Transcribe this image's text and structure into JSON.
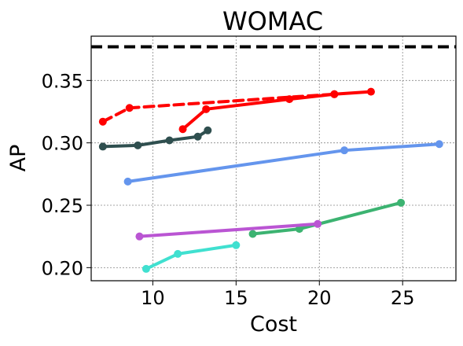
{
  "chart_data": {
    "type": "line",
    "title": "WOMAC",
    "xlabel": "Cost",
    "ylabel": "AP",
    "xlim": [
      6.3,
      28.2
    ],
    "ylim": [
      0.1895,
      0.3855
    ],
    "xticks": [
      10,
      15,
      20,
      25
    ],
    "xtick_labels": [
      "10",
      "15",
      "20",
      "25"
    ],
    "yticks": [
      0.2,
      0.25,
      0.3,
      0.35
    ],
    "ytick_labels": [
      "0.20",
      "0.25",
      "0.30",
      "0.35"
    ],
    "grid": true,
    "reference_line": {
      "y": 0.377,
      "color": "#000000",
      "style": "dashed"
    },
    "series": [
      {
        "color": "#ff0000",
        "style": "dashed",
        "points": [
          [
            7.0,
            0.317
          ],
          [
            8.6,
            0.328
          ],
          [
            20.9,
            0.339
          ]
        ]
      },
      {
        "color": "#ff0000",
        "style": "solid",
        "points": [
          [
            11.8,
            0.311
          ],
          [
            13.2,
            0.327
          ],
          [
            18.2,
            0.335
          ],
          [
            20.9,
            0.339
          ],
          [
            23.1,
            0.341
          ]
        ]
      },
      {
        "color": "#2f4f4f",
        "style": "solid",
        "points": [
          [
            7.0,
            0.297
          ],
          [
            9.1,
            0.298
          ],
          [
            11.0,
            0.302
          ],
          [
            12.7,
            0.305
          ],
          [
            13.3,
            0.31
          ]
        ]
      },
      {
        "color": "#6495ed",
        "style": "solid",
        "points": [
          [
            8.5,
            0.269
          ],
          [
            21.5,
            0.294
          ],
          [
            27.2,
            0.299
          ]
        ]
      },
      {
        "color": "#3cb371",
        "style": "solid",
        "points": [
          [
            16.0,
            0.227
          ],
          [
            18.8,
            0.231
          ],
          [
            24.9,
            0.252
          ]
        ]
      },
      {
        "color": "#ba55d3",
        "style": "solid",
        "points": [
          [
            9.2,
            0.225
          ],
          [
            19.9,
            0.235
          ]
        ]
      },
      {
        "color": "#40e0d0",
        "style": "solid",
        "points": [
          [
            9.6,
            0.199
          ],
          [
            11.5,
            0.211
          ],
          [
            15.0,
            0.218
          ]
        ]
      }
    ]
  }
}
